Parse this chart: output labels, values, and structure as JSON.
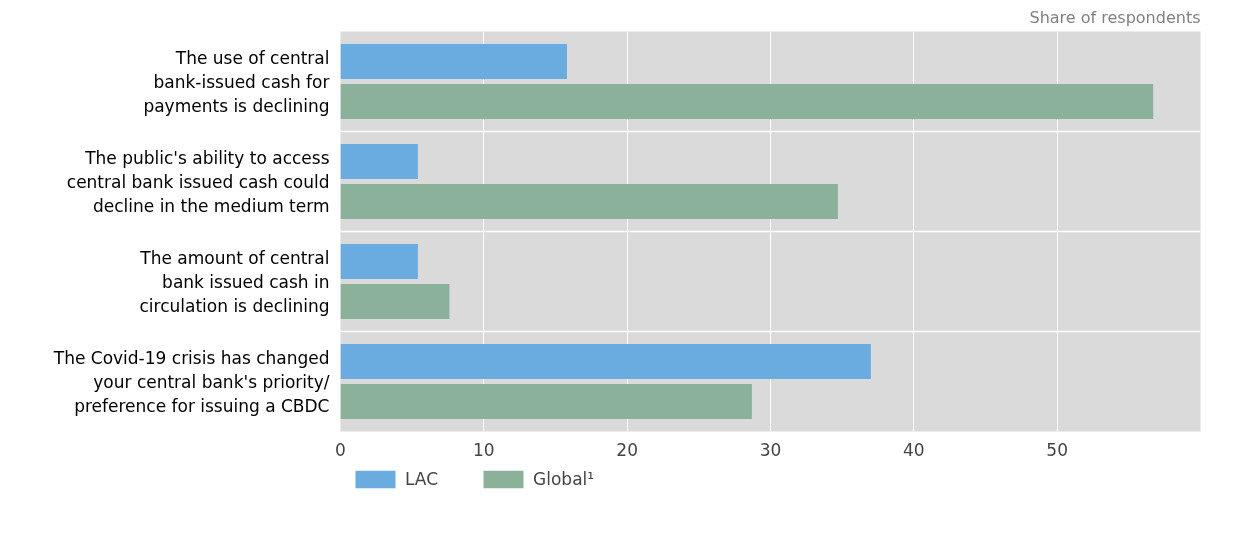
{
  "chart_data": {
    "type": "bar",
    "orientation": "horizontal",
    "categories": [
      "The use of central bank-issued cash for payments is declining",
      "The public's ability to access central bank issued cash could decline in the medium term",
      "The amount of central bank issued cash in circulation is declining",
      "The Covid-19 crisis has changed your central bank's priority/ preference for issuing a CBDC"
    ],
    "series": [
      {
        "name": "LAC",
        "color": "#6aabe0",
        "values": [
          15.8,
          5.4,
          5.4,
          37.0
        ]
      },
      {
        "name": "Global¹",
        "color": "#8bb19a",
        "values": [
          56.7,
          34.7,
          7.6,
          28.7
        ]
      }
    ],
    "xlim": [
      0,
      60
    ],
    "xticks": [
      0,
      10,
      20,
      30,
      40,
      50
    ],
    "grid": "x",
    "legend": "bottom",
    "annotations": [
      "Share of respondents"
    ]
  }
}
